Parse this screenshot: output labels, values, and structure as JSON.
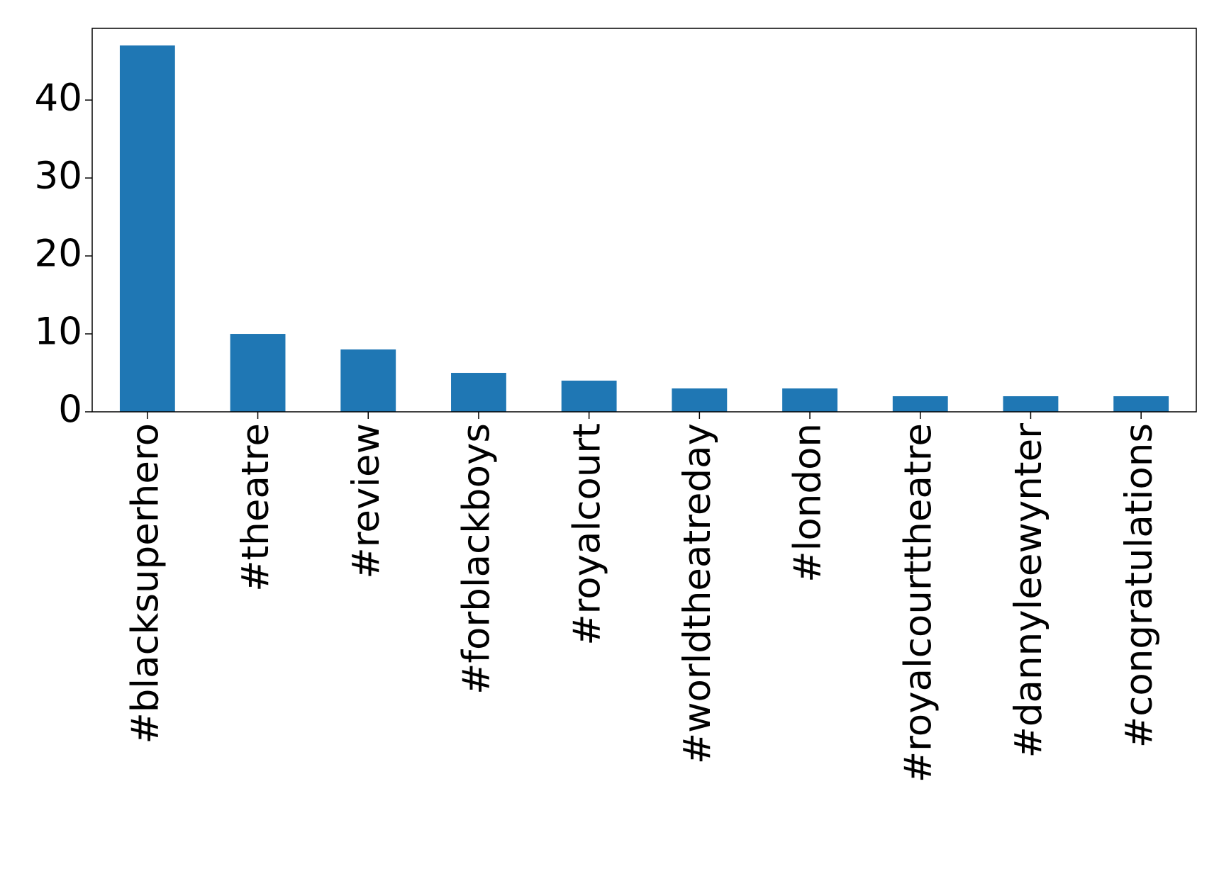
{
  "chart_data": {
    "type": "bar",
    "categories": [
      "#blacksuperhero",
      "#theatre",
      "#review",
      "#forblackboys",
      "#royalcourt",
      "#worldtheatreday",
      "#london",
      "#royalcourttheatre",
      "#dannyleewynter",
      "#congratulations"
    ],
    "values": [
      47,
      10,
      8,
      5,
      4,
      3,
      3,
      2,
      2,
      2
    ],
    "color": "#1f77b4",
    "ylim": [
      0,
      49.2
    ],
    "yticks": [
      0,
      10,
      20,
      30,
      40
    ],
    "grid": false
  }
}
